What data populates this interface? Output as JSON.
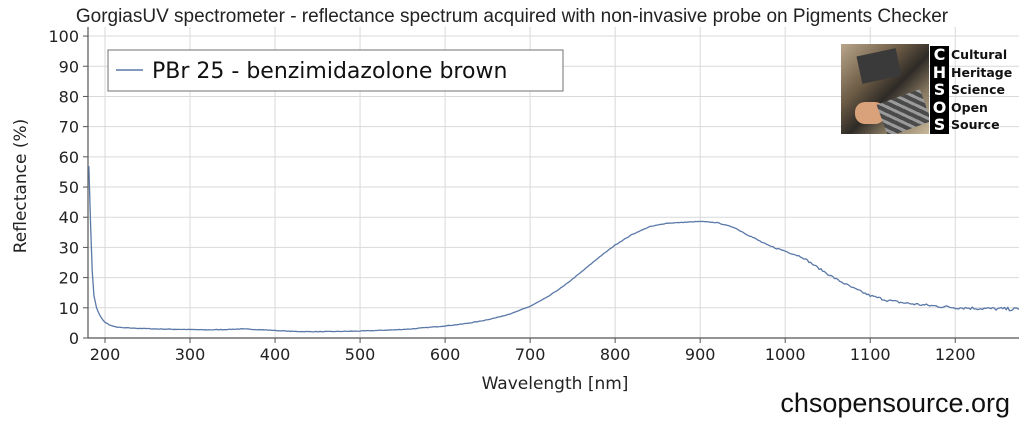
{
  "chart_data": {
    "type": "line",
    "title": "GorgiasUV spectrometer - reflectance spectrum acquired with non-invasive probe on Pigments Checker",
    "xlabel": "Wavelength [nm]",
    "ylabel": "Reflectance (%)",
    "xlim": [
      180,
      1275
    ],
    "ylim": [
      0,
      103
    ],
    "xticks": [
      200,
      300,
      400,
      500,
      600,
      700,
      800,
      900,
      1000,
      1100,
      1200
    ],
    "yticks": [
      0,
      10,
      20,
      30,
      40,
      50,
      60,
      70,
      80,
      90,
      100
    ],
    "grid": true,
    "legend": "top-left",
    "series": [
      {
        "name": "PBr 25 - benzimidazolone brown",
        "color": "#5a78a8",
        "x": [
          181,
          183,
          185,
          187,
          190,
          193,
          196,
          200,
          205,
          210,
          220,
          240,
          260,
          280,
          300,
          320,
          340,
          360,
          380,
          400,
          420,
          440,
          460,
          480,
          500,
          520,
          540,
          560,
          580,
          600,
          620,
          640,
          660,
          680,
          700,
          720,
          740,
          760,
          780,
          800,
          820,
          840,
          860,
          880,
          900,
          920,
          940,
          960,
          980,
          1000,
          1020,
          1040,
          1060,
          1080,
          1100,
          1120,
          1140,
          1160,
          1180,
          1200,
          1220,
          1240,
          1260,
          1275
        ],
        "y": [
          57,
          38,
          22,
          14,
          10,
          8,
          6.5,
          5.2,
          4.4,
          3.8,
          3.4,
          3.2,
          3.0,
          2.9,
          2.8,
          2.7,
          2.8,
          3.0,
          2.8,
          2.5,
          2.2,
          2.1,
          2.1,
          2.2,
          2.3,
          2.5,
          2.7,
          3.0,
          3.5,
          4.0,
          4.6,
          5.5,
          6.7,
          8.3,
          10.5,
          13.5,
          17.3,
          21.8,
          26.5,
          30.8,
          34.3,
          36.8,
          38.0,
          38.3,
          38.6,
          38.2,
          36.6,
          33.6,
          30.6,
          28.8,
          26.8,
          23.0,
          19.5,
          16.5,
          14.0,
          12.5,
          11.6,
          11.0,
          10.5,
          10.1,
          9.9,
          9.7,
          9.6,
          9.5
        ]
      }
    ]
  },
  "logo": {
    "letters": [
      "C",
      "H",
      "S",
      "O",
      "S"
    ],
    "words": [
      "Cultural",
      "Heritage",
      "Science",
      "Open",
      "Source"
    ]
  },
  "footer": {
    "url": "chsopensource.org"
  },
  "colors": {
    "grid": "#d9d9d9",
    "axis": "#555555",
    "series": "#5a78a8"
  }
}
